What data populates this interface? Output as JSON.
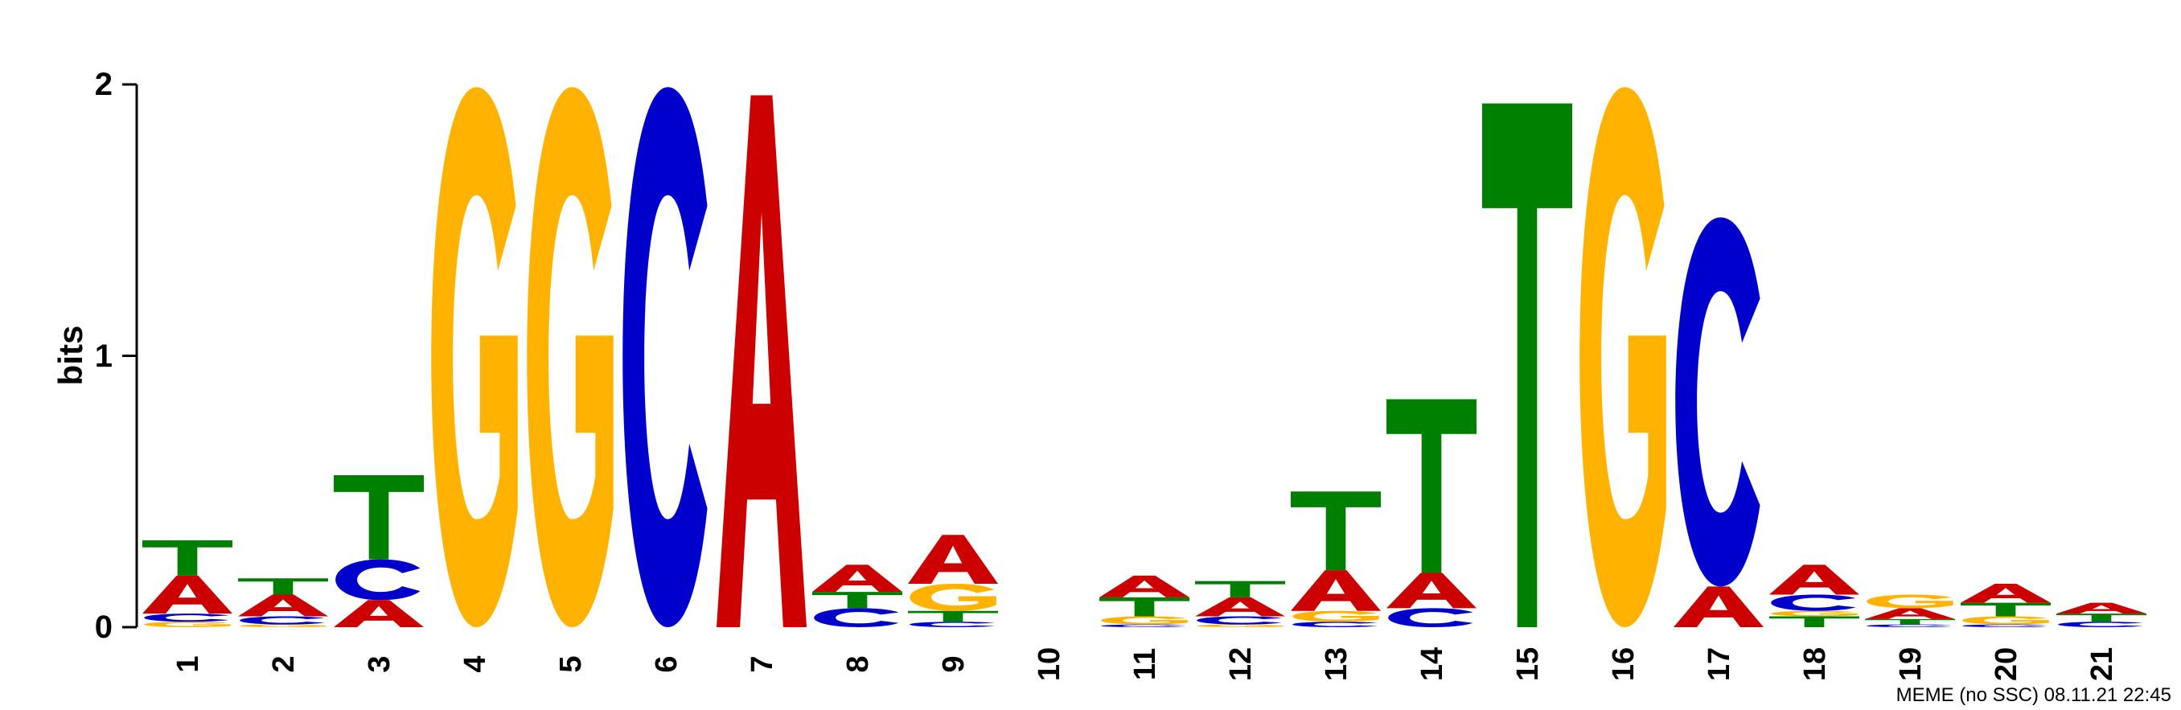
{
  "chart_data": {
    "type": "sequence-logo",
    "ylabel": "bits",
    "ylim": [
      0,
      2
    ],
    "yticks": [
      "0",
      "1",
      "2"
    ],
    "footer": "MEME (no SSC) 08.11.21 22:45",
    "colors": {
      "A": "#CC0000",
      "C": "#0000CC",
      "G": "#FFB300",
      "T": "#008000"
    },
    "positions": [
      {
        "label": "1",
        "letters": [
          {
            "base": "G",
            "bits": 0.02
          },
          {
            "base": "C",
            "bits": 0.03
          },
          {
            "base": "A",
            "bits": 0.14
          },
          {
            "base": "T",
            "bits": 0.13
          }
        ]
      },
      {
        "label": "2",
        "letters": [
          {
            "base": "G",
            "bits": 0.01
          },
          {
            "base": "C",
            "bits": 0.03
          },
          {
            "base": "A",
            "bits": 0.08
          },
          {
            "base": "T",
            "bits": 0.06
          }
        ]
      },
      {
        "label": "3",
        "letters": [
          {
            "base": "A",
            "bits": 0.1
          },
          {
            "base": "C",
            "bits": 0.15
          },
          {
            "base": "T",
            "bits": 0.31
          }
        ]
      },
      {
        "label": "4",
        "letters": [
          {
            "base": "G",
            "bits": 1.99
          }
        ]
      },
      {
        "label": "5",
        "letters": [
          {
            "base": "G",
            "bits": 1.99
          }
        ]
      },
      {
        "label": "6",
        "letters": [
          {
            "base": "C",
            "bits": 1.99
          }
        ]
      },
      {
        "label": "7",
        "letters": [
          {
            "base": "A",
            "bits": 1.96
          }
        ]
      },
      {
        "label": "8",
        "letters": [
          {
            "base": "C",
            "bits": 0.07
          },
          {
            "base": "T",
            "bits": 0.06
          },
          {
            "base": "A",
            "bits": 0.1
          }
        ]
      },
      {
        "label": "9",
        "letters": [
          {
            "base": "C",
            "bits": 0.02
          },
          {
            "base": "T",
            "bits": 0.04
          },
          {
            "base": "G",
            "bits": 0.1
          },
          {
            "base": "A",
            "bits": 0.18
          }
        ]
      },
      {
        "label": "10",
        "letters": []
      },
      {
        "label": "11",
        "letters": [
          {
            "base": "C",
            "bits": 0.01
          },
          {
            "base": "G",
            "bits": 0.03
          },
          {
            "base": "T",
            "bits": 0.07
          },
          {
            "base": "A",
            "bits": 0.08
          }
        ]
      },
      {
        "label": "12",
        "letters": [
          {
            "base": "G",
            "bits": 0.01
          },
          {
            "base": "C",
            "bits": 0.03
          },
          {
            "base": "A",
            "bits": 0.07
          },
          {
            "base": "T",
            "bits": 0.06
          }
        ]
      },
      {
        "label": "13",
        "letters": [
          {
            "base": "C",
            "bits": 0.02
          },
          {
            "base": "G",
            "bits": 0.04
          },
          {
            "base": "A",
            "bits": 0.15
          },
          {
            "base": "T",
            "bits": 0.29
          }
        ]
      },
      {
        "label": "14",
        "letters": [
          {
            "base": "C",
            "bits": 0.07
          },
          {
            "base": "A",
            "bits": 0.13
          },
          {
            "base": "T",
            "bits": 0.64
          }
        ]
      },
      {
        "label": "15",
        "letters": [
          {
            "base": "T",
            "bits": 1.93
          }
        ]
      },
      {
        "label": "16",
        "letters": [
          {
            "base": "G",
            "bits": 1.99
          }
        ]
      },
      {
        "label": "17",
        "letters": [
          {
            "base": "A",
            "bits": 0.15
          },
          {
            "base": "C",
            "bits": 1.36
          }
        ]
      },
      {
        "label": "18",
        "letters": [
          {
            "base": "T",
            "bits": 0.04
          },
          {
            "base": "G",
            "bits": 0.02
          },
          {
            "base": "C",
            "bits": 0.06
          },
          {
            "base": "A",
            "bits": 0.11
          }
        ]
      },
      {
        "label": "19",
        "letters": [
          {
            "base": "C",
            "bits": 0.01
          },
          {
            "base": "T",
            "bits": 0.02
          },
          {
            "base": "A",
            "bits": 0.04
          },
          {
            "base": "G",
            "bits": 0.05
          }
        ]
      },
      {
        "label": "20",
        "letters": [
          {
            "base": "C",
            "bits": 0.01
          },
          {
            "base": "G",
            "bits": 0.03
          },
          {
            "base": "T",
            "bits": 0.05
          },
          {
            "base": "A",
            "bits": 0.07
          }
        ]
      },
      {
        "label": "21",
        "letters": [
          {
            "base": "C",
            "bits": 0.02
          },
          {
            "base": "T",
            "bits": 0.03
          },
          {
            "base": "A",
            "bits": 0.04
          }
        ]
      }
    ]
  }
}
